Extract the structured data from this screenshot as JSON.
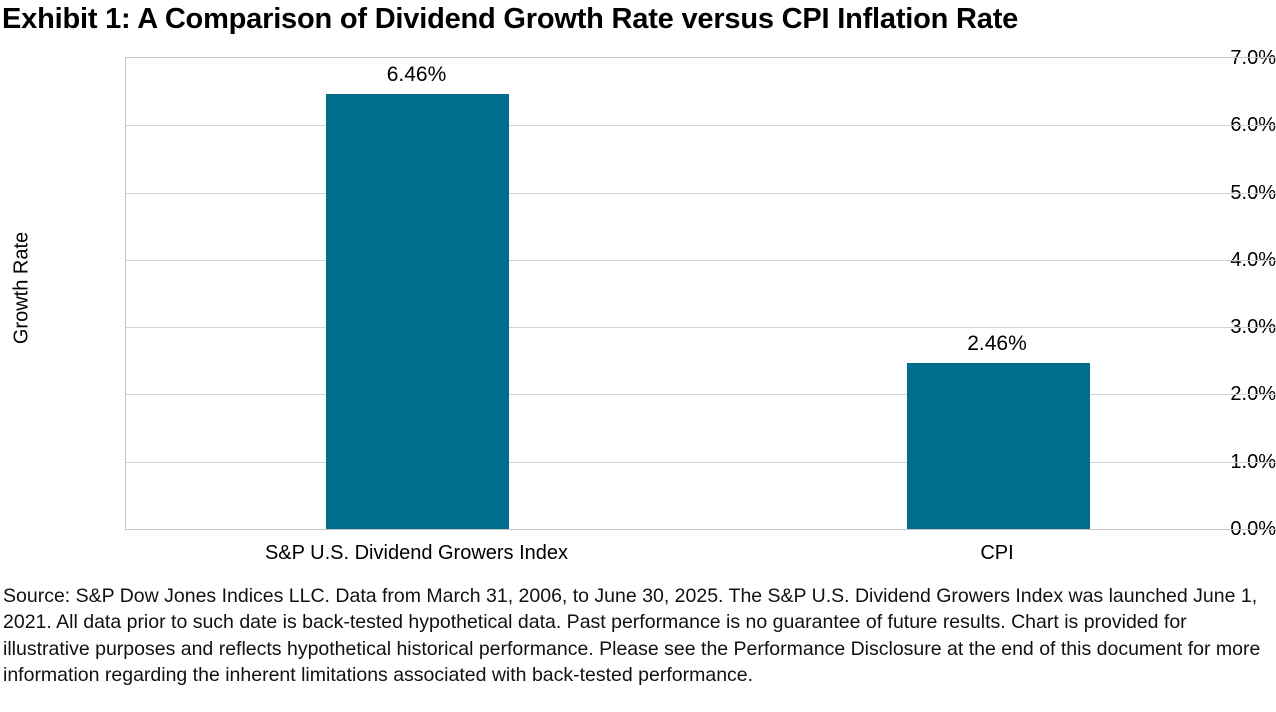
{
  "title": "Exhibit 1: A Comparison of Dividend Growth Rate versus CPI Inflation Rate",
  "chart_data": {
    "type": "bar",
    "title": "Exhibit 1: A Comparison of Dividend Growth Rate versus CPI Inflation Rate",
    "categories": [
      "S&P U.S. Dividend Growers Index",
      "CPI"
    ],
    "values": [
      6.46,
      2.46
    ],
    "value_labels": [
      "6.46%",
      "2.46%"
    ],
    "xlabel": "",
    "ylabel": "Growth Rate",
    "ylim": [
      0,
      7
    ],
    "ytick_step": 1.0,
    "ytick_labels": [
      "0.0%",
      "1.0%",
      "2.0%",
      "3.0%",
      "4.0%",
      "5.0%",
      "6.0%",
      "7.0%"
    ],
    "grid": true,
    "legend": "none",
    "colors": {
      "bar": "#006E8C",
      "gridline": "#d2d2d2",
      "axis_border": "#c6c6c6",
      "text": "#000000"
    }
  },
  "footer": "Source: S&P Dow Jones Indices LLC. Data from March 31, 2006, to June 30, 2025. The S&P U.S. Dividend Growers Index was launched June 1, 2021. All data prior to such date is back-tested hypothetical data. Past performance is no guarantee of future results. Chart is provided for illustrative purposes and reflects hypothetical historical performance. Please see the Performance Disclosure at the end of this document for more information regarding the inherent limitations associated with back-tested performance."
}
